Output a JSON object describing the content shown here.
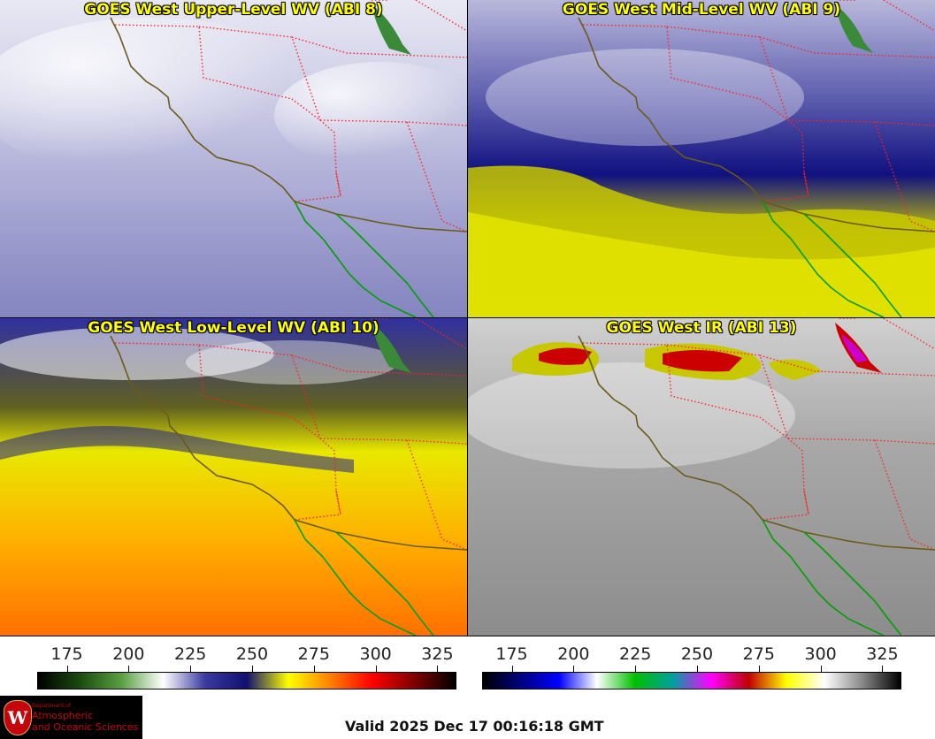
{
  "panels": [
    {
      "title": "GOES West Upper-Level WV (ABI 8)",
      "palette": "wv-upper"
    },
    {
      "title": "GOES West Mid-Level WV (ABI 9)",
      "palette": "wv-mid"
    },
    {
      "title": "GOES West Low-Level WV (ABI 10)",
      "palette": "wv-low"
    },
    {
      "title": "GOES West IR (ABI 13)",
      "palette": "ir"
    }
  ],
  "colorbars": {
    "wv": {
      "ticks": [
        "175",
        "200",
        "225",
        "250",
        "275",
        "300",
        "325"
      ],
      "range": [
        163,
        332
      ],
      "colors": [
        "#000000",
        "#1a4a10",
        "#5aa040",
        "#ffffff",
        "#3a3aa0",
        "#101070",
        "#ffff00",
        "#ff8000",
        "#ff0000",
        "#800000",
        "#000000"
      ]
    },
    "ir": {
      "ticks": [
        "175",
        "200",
        "225",
        "250",
        "275",
        "300",
        "325"
      ],
      "range": [
        163,
        332
      ],
      "colors": [
        "#000000",
        "#000080",
        "#0000ff",
        "#ffffff",
        "#00c000",
        "#00a0a0",
        "#ff00ff",
        "#c00000",
        "#ffff00",
        "#ffffff",
        "#888888",
        "#000000"
      ]
    }
  },
  "logo": {
    "crest_letter": "W",
    "dept": "Department of",
    "line1": "Atmospheric",
    "line2": "and Oceanic Sciences"
  },
  "valid_time": "Valid 2025 Dec 17 00:16:18 GMT",
  "colors": {
    "state_border": "#ff2020",
    "coastline": "#6b5a1a",
    "mexico_coast": "#00a000",
    "title": "#ffff00"
  }
}
